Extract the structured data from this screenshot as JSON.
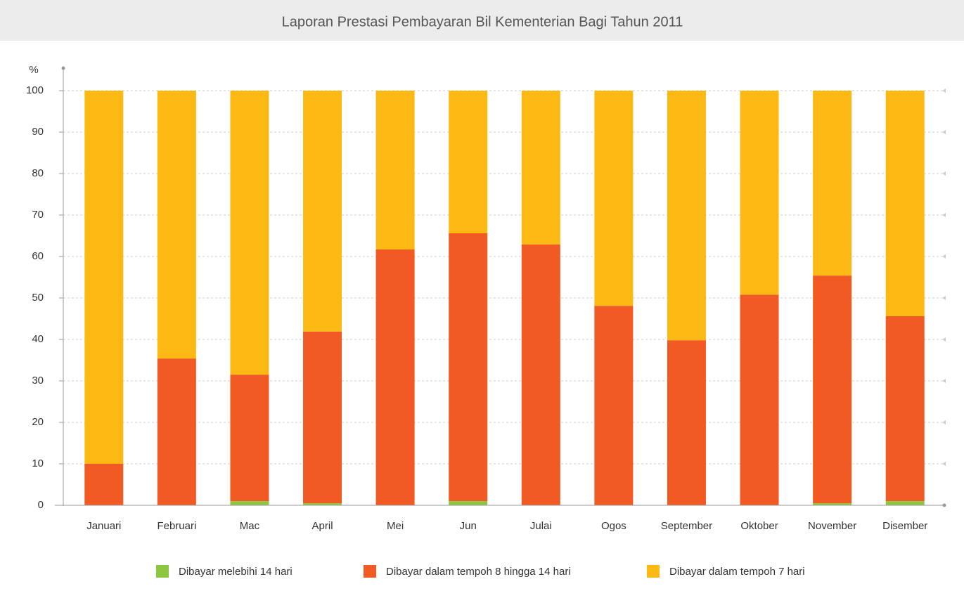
{
  "chart_data": {
    "type": "stacked_bar",
    "title": "Laporan Prestasi Pembayaran Bil Kementerian Bagi Tahun 2011",
    "y_label": "%",
    "categories": [
      "Januari",
      "Februari",
      "Mac",
      "April",
      "Mei",
      "Jun",
      "Julai",
      "Ogos",
      "September",
      "Oktober",
      "November",
      "Disember"
    ],
    "series": [
      {
        "name": "Dibayar melebihi 14 hari",
        "color": "#8dc63f",
        "values": [
          0,
          0,
          1,
          0.5,
          0,
          1,
          0,
          0,
          0,
          0,
          0.5,
          1
        ]
      },
      {
        "name": "Dibayar dalam tempoh 8 hingga 14 hari",
        "color": "#f15a22",
        "values": [
          10,
          35.4,
          30.5,
          41.4,
          61.7,
          64.6,
          62.9,
          48.1,
          39.8,
          50.8,
          54.9,
          44.6
        ]
      },
      {
        "name": "Dibayar dalam tempoh 7 hari",
        "color": "#fdb913",
        "values": [
          90,
          64.6,
          68.5,
          58.1,
          38.3,
          34.4,
          37.1,
          51.9,
          60.2,
          49.2,
          44.6,
          54.4
        ]
      }
    ],
    "ylim": [
      0,
      100
    ],
    "yticks": [
      0,
      10,
      20,
      30,
      40,
      50,
      60,
      70,
      80,
      90,
      100
    ],
    "grid": true,
    "legend": "bottom"
  }
}
